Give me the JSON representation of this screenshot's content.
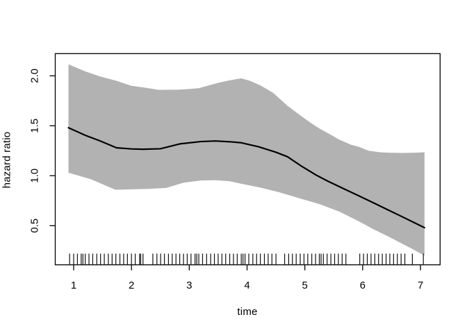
{
  "figure": {
    "background": "#ffffff",
    "band_color": "#b2b2b2",
    "line_color": "#000000",
    "axis_color": "#000000",
    "tick_label_color": "#000000"
  },
  "chart_data": {
    "type": "area",
    "title": "",
    "xlabel": "time",
    "ylabel": "hazard ratio",
    "x_ticks": [
      1,
      2,
      3,
      4,
      5,
      6,
      7
    ],
    "y_ticks": [
      0.5,
      1.0,
      1.5,
      2.0
    ],
    "y_tick_labels": [
      "0.5",
      "1.0",
      "1.5",
      "2.0"
    ],
    "xlim": [
      0.67,
      7.34
    ],
    "ylim": [
      0.11,
      2.22
    ],
    "grid": false,
    "legend": "none",
    "series": [
      {
        "name": "hazard ratio estimate",
        "type": "line",
        "x": [
          0.91,
          1.2,
          1.45,
          1.74,
          2.0,
          2.2,
          2.5,
          2.85,
          3.2,
          3.45,
          3.7,
          3.9,
          4.2,
          4.5,
          4.7,
          4.93,
          5.2,
          5.4,
          5.7,
          5.93,
          6.2,
          6.45,
          6.7,
          6.9,
          7.07
        ],
        "y": [
          1.48,
          1.405,
          1.35,
          1.28,
          1.268,
          1.265,
          1.27,
          1.32,
          1.342,
          1.348,
          1.34,
          1.33,
          1.29,
          1.235,
          1.19,
          1.1,
          1.005,
          0.945,
          0.862,
          0.8,
          0.725,
          0.655,
          0.585,
          0.528,
          0.48
        ]
      },
      {
        "name": "confidence band upper",
        "type": "band-upper",
        "x": [
          0.91,
          1.2,
          1.45,
          1.74,
          2.0,
          2.2,
          2.47,
          2.85,
          3.16,
          3.5,
          3.7,
          3.9,
          4.05,
          4.23,
          4.45,
          4.7,
          4.93,
          5.1,
          5.26,
          5.45,
          5.6,
          5.8,
          5.93,
          6.1,
          6.3,
          6.45,
          6.7,
          6.9,
          7.07
        ],
        "y": [
          2.115,
          2.045,
          1.995,
          1.95,
          1.9,
          1.885,
          1.86,
          1.862,
          1.875,
          1.93,
          1.955,
          1.975,
          1.95,
          1.905,
          1.83,
          1.7,
          1.6,
          1.53,
          1.47,
          1.41,
          1.36,
          1.31,
          1.29,
          1.25,
          1.235,
          1.23,
          1.228,
          1.23,
          1.235
        ]
      },
      {
        "name": "confidence band lower",
        "type": "band-lower",
        "x": [
          0.91,
          1.3,
          1.72,
          2.0,
          2.3,
          2.6,
          2.9,
          3.2,
          3.45,
          3.7,
          3.9,
          4.2,
          4.55,
          4.93,
          5.26,
          5.6,
          5.93,
          6.2,
          6.45,
          6.7,
          6.9,
          7.07
        ],
        "y": [
          1.03,
          0.965,
          0.86,
          0.864,
          0.868,
          0.878,
          0.93,
          0.953,
          0.955,
          0.945,
          0.92,
          0.885,
          0.835,
          0.77,
          0.715,
          0.64,
          0.545,
          0.46,
          0.39,
          0.315,
          0.255,
          0.2
        ]
      }
    ],
    "rug_x": [
      0.93,
      1.0,
      1.065,
      1.13,
      1.16,
      1.2,
      1.265,
      1.33,
      1.4,
      1.465,
      1.53,
      1.6,
      1.665,
      1.73,
      1.8,
      1.865,
      1.93,
      2.0,
      2.065,
      2.14,
      2.16,
      2.2,
      2.37,
      2.44,
      2.505,
      2.57,
      2.64,
      2.705,
      2.77,
      2.835,
      2.9,
      2.965,
      3.03,
      3.1,
      3.13,
      3.165,
      3.23,
      3.3,
      3.37,
      3.435,
      3.5,
      3.565,
      3.63,
      3.7,
      3.765,
      3.83,
      3.9,
      3.93,
      3.965,
      4.03,
      4.1,
      4.165,
      4.23,
      4.3,
      4.365,
      4.43,
      4.5,
      4.65,
      4.72,
      4.785,
      4.85,
      4.92,
      4.985,
      5.05,
      5.12,
      5.185,
      5.25,
      5.28,
      5.32,
      5.385,
      5.45,
      5.515,
      5.58,
      5.645,
      5.71,
      5.95,
      6.015,
      6.08,
      6.145,
      6.21,
      6.275,
      6.34,
      6.405,
      6.47,
      6.535,
      6.6,
      6.665,
      6.73,
      6.86,
      7.05
    ]
  }
}
